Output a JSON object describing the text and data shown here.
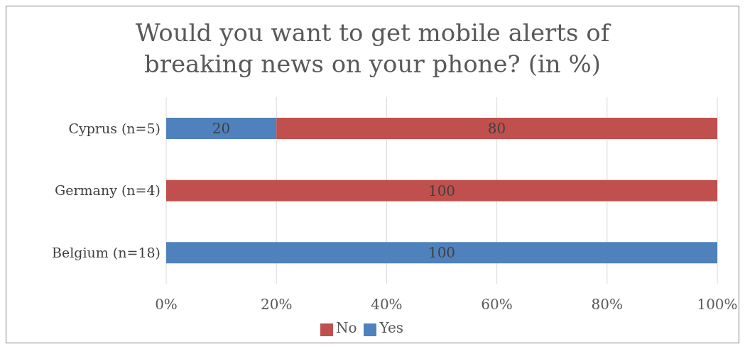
{
  "chart_data": {
    "type": "bar",
    "orientation": "horizontal",
    "stacked": true,
    "title": "Would you want to get mobile alerts of breaking news on your phone? (in %)",
    "categories": [
      "Cyprus (n=5)",
      "Germany (n=4)",
      "Belgium (n=18)"
    ],
    "series": [
      {
        "name": "Yes",
        "color": "#4f81bd",
        "values": [
          20,
          0,
          100
        ],
        "value_labels": [
          "20",
          null,
          "100"
        ]
      },
      {
        "name": "No",
        "color": "#c0504d",
        "values": [
          80,
          100,
          0
        ],
        "value_labels": [
          "80",
          "100",
          null
        ]
      }
    ],
    "xlim": [
      0,
      100
    ],
    "xticks": [
      {
        "value": 0,
        "label": "0%"
      },
      {
        "value": 20,
        "label": "20%"
      },
      {
        "value": 40,
        "label": "40%"
      },
      {
        "value": 60,
        "label": "60%"
      },
      {
        "value": 80,
        "label": "80%"
      },
      {
        "value": 100,
        "label": "100%"
      }
    ],
    "grid": "x",
    "legend": "bottom"
  }
}
